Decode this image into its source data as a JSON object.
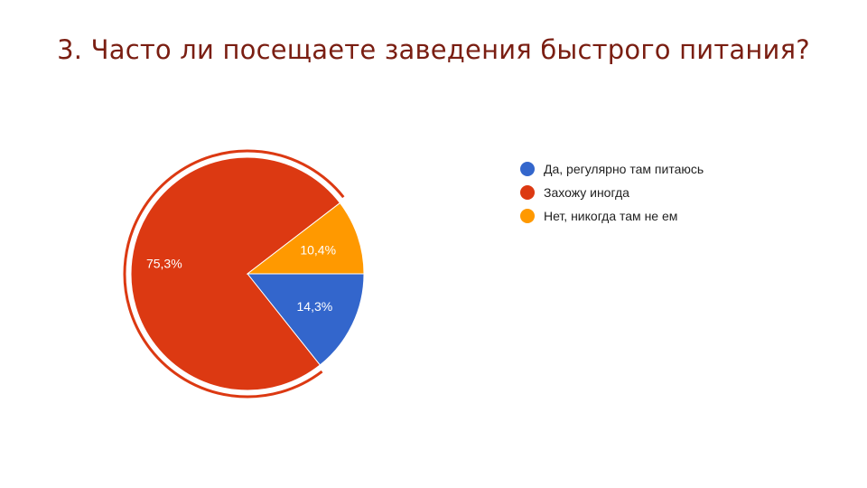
{
  "slide": {
    "title": "3. Часто ли посещаете заведения быстрого питания?"
  },
  "chart_data": {
    "type": "pie",
    "labels": [
      "Да, регулярно там питаюсь",
      "Захожу иногда",
      "Нет, никогда там не ем"
    ],
    "values": [
      14.3,
      75.3,
      10.4
    ],
    "data_labels": [
      "14,3%",
      "75,3%",
      "10,4%"
    ],
    "colors": [
      "#3366cc",
      "#dc3912",
      "#ff9900"
    ],
    "start_angle_deg": 0,
    "direction": "clockwise",
    "legend_position": "right"
  }
}
